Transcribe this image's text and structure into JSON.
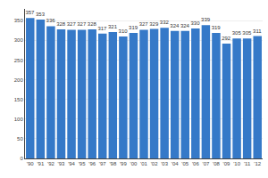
{
  "chart_data": {
    "type": "bar",
    "categories": [
      "'90",
      "'91",
      "'92",
      "'93",
      "'94",
      "'95",
      "'96",
      "'97",
      "'98",
      "'99",
      "'00",
      "'01",
      "'02",
      "'03",
      "'04",
      "'05",
      "'06",
      "'07",
      "'08",
      "'09",
      "'10",
      "'11",
      "'12"
    ],
    "values": [
      357,
      353,
      336,
      328,
      327,
      327,
      328,
      317,
      321,
      310,
      319,
      327,
      329,
      332,
      324,
      324,
      330,
      339,
      319,
      292,
      305,
      305,
      311
    ],
    "color": "#3579c8",
    "ylim": [
      0,
      380
    ],
    "yticks": [
      0,
      50,
      100,
      150,
      200,
      250,
      300,
      350
    ],
    "grid": true,
    "data_labels": true
  }
}
